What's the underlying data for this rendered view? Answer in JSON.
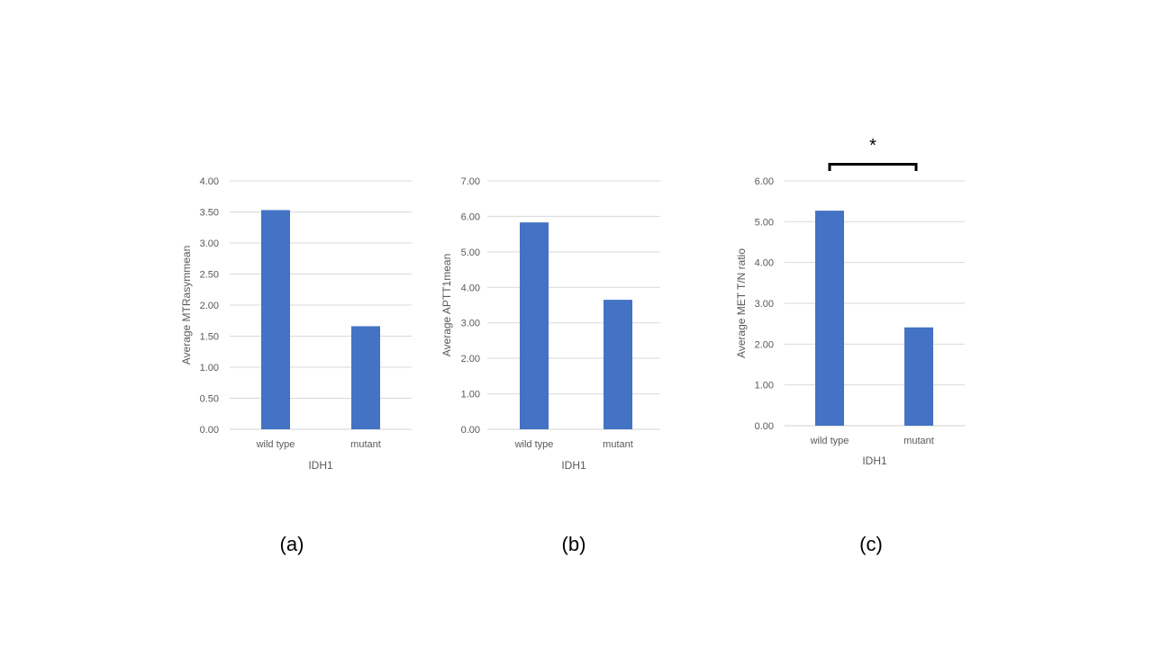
{
  "chart_data": [
    {
      "type": "bar",
      "caption": "(a)",
      "categories": [
        "wild type",
        "mutant"
      ],
      "values": [
        3.53,
        1.66
      ],
      "xlabel": "IDH1",
      "ylabel": "Average MTRasymmean",
      "ylim": [
        0,
        4
      ],
      "yticks": [
        "0.00",
        "0.50",
        "1.00",
        "1.50",
        "2.00",
        "2.50",
        "3.00",
        "3.50",
        "4.00"
      ],
      "grid": true,
      "bar_color": "#4472C4",
      "annotation": null
    },
    {
      "type": "bar",
      "caption": "(b)",
      "categories": [
        "wild type",
        "mutant"
      ],
      "values": [
        5.83,
        3.65
      ],
      "xlabel": "IDH1",
      "ylabel": "Average APTT1mean",
      "ylim": [
        0,
        7
      ],
      "yticks": [
        "0.00",
        "1.00",
        "2.00",
        "3.00",
        "4.00",
        "5.00",
        "6.00",
        "7.00"
      ],
      "grid": true,
      "bar_color": "#4472C4",
      "annotation": null
    },
    {
      "type": "bar",
      "caption": "(c)",
      "categories": [
        "wild type",
        "mutant"
      ],
      "values": [
        5.27,
        2.41
      ],
      "xlabel": "IDH1",
      "ylabel": "Average MET T/N ratio",
      "ylim": [
        0,
        6
      ],
      "yticks": [
        "0.00",
        "1.00",
        "2.00",
        "3.00",
        "4.00",
        "5.00",
        "6.00"
      ],
      "grid": true,
      "bar_color": "#4472C4",
      "annotation": "*"
    }
  ]
}
